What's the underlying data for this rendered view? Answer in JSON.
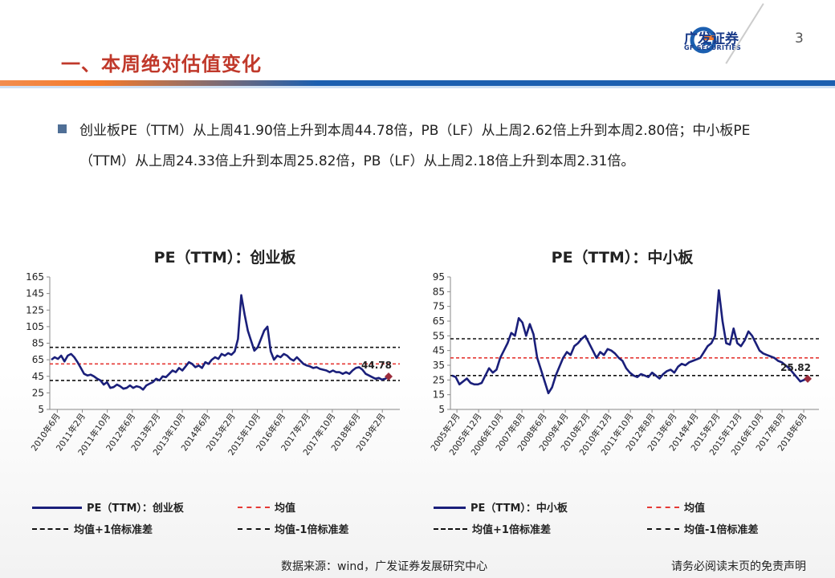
{
  "header": {
    "title": "一、本周绝对估值变化",
    "logo_cn": "广发证券",
    "logo_en": "GF SECURITIES",
    "page_number": "3",
    "colors": {
      "title": "#c0392b",
      "brand_blue": "#1b5fb0",
      "brand_orange": "#f47a2c"
    }
  },
  "bullet": {
    "text": "创业板PE（TTM）从上周41.90倍上升到本周44.78倍，PB（LF）从上周2.62倍上升到本周2.80倍；中小板PE（TTM）从上周24.33倍上升到本周25.82倍，PB（LF）从上周2.18倍上升到本周2.31倍。",
    "icon": "square-bullet-icon"
  },
  "footer": {
    "source": "数据来源：wind，广发证券发展研究中心",
    "disclaimer": "请务必阅读末页的免责声明"
  },
  "chart_data": [
    {
      "type": "line",
      "title": "PE（TTM）：创业板",
      "x_ticks": [
        "2010年6月",
        "2011年2月",
        "2011年10月",
        "2012年6月",
        "2013年2月",
        "2013年10月",
        "2014年6月",
        "2015年2月",
        "2015年10月",
        "2016年6月",
        "2017年2月",
        "2017年10月",
        "2018年6月",
        "2019年2月"
      ],
      "y_ticks": [
        5,
        25,
        45,
        65,
        85,
        105,
        125,
        145,
        165
      ],
      "ylim": [
        5,
        165
      ],
      "series": [
        {
          "name": "PE（TTM）：创业板",
          "color": "#1a1f7a",
          "values": [
            65,
            68,
            66,
            70,
            63,
            70,
            72,
            68,
            62,
            55,
            48,
            46,
            47,
            45,
            42,
            40,
            35,
            38,
            31,
            32,
            35,
            33,
            30,
            31,
            34,
            31,
            33,
            32,
            29,
            34,
            36,
            38,
            42,
            40,
            45,
            44,
            48,
            52,
            50,
            55,
            52,
            57,
            62,
            60,
            56,
            58,
            55,
            62,
            60,
            65,
            68,
            66,
            72,
            70,
            73,
            71,
            75,
            90,
            143,
            120,
            100,
            88,
            76,
            80,
            90,
            100,
            105,
            75,
            65,
            70,
            68,
            72,
            70,
            66,
            64,
            68,
            64,
            60,
            58,
            57,
            55,
            56,
            54,
            53,
            52,
            50,
            52,
            50,
            50,
            48,
            50,
            48,
            52,
            55,
            56,
            53,
            48,
            46,
            44,
            42,
            43,
            41,
            42,
            44.78
          ]
        },
        {
          "name": "均值",
          "color": "#e53935",
          "dash": true,
          "values_const": 60
        },
        {
          "name": "均值+1倍标准差",
          "color": "#111111",
          "dash": true,
          "values_const": 80
        },
        {
          "name": "均值-1倍标准差",
          "color": "#111111",
          "dash": true,
          "values_const": 40
        }
      ],
      "end_label": "44.78",
      "legend": [
        "PE（TTM）：创业板",
        "均值",
        "均值+1倍标准差",
        "均值-1倍标准差"
      ]
    },
    {
      "type": "line",
      "title": "PE（TTM）：中小板",
      "x_ticks": [
        "2005年2月",
        "2005年12月",
        "2006年10月",
        "2007年8月",
        "2008年6月",
        "2009年4月",
        "2010年2月",
        "2010年12月",
        "2011年10月",
        "2012年8月",
        "2013年6月",
        "2014年4月",
        "2015年2月",
        "2015年12月",
        "2016年10月",
        "2017年8月",
        "2018年6月"
      ],
      "y_ticks": [
        5,
        15,
        25,
        35,
        45,
        55,
        65,
        75,
        85,
        95
      ],
      "ylim": [
        5,
        95
      ],
      "series": [
        {
          "name": "PE（TTM）：中小板",
          "color": "#1a1f7a",
          "values": [
            28,
            27,
            22,
            24,
            26,
            23,
            22,
            22,
            23,
            28,
            33,
            30,
            32,
            40,
            45,
            50,
            57,
            55,
            67,
            64,
            55,
            63,
            56,
            40,
            32,
            24,
            16,
            20,
            28,
            34,
            40,
            44,
            42,
            48,
            50,
            53,
            55,
            50,
            45,
            40,
            44,
            42,
            46,
            45,
            43,
            40,
            38,
            33,
            30,
            28,
            27,
            29,
            28,
            27,
            30,
            28,
            26,
            29,
            31,
            32,
            30,
            34,
            36,
            35,
            37,
            38,
            39,
            40,
            44,
            48,
            50,
            55,
            86,
            65,
            50,
            49,
            60,
            50,
            48,
            52,
            58,
            55,
            50,
            45,
            43,
            42,
            41,
            40,
            38,
            37,
            35,
            33,
            30,
            27,
            24,
            25,
            25.82
          ]
        },
        {
          "name": "均值",
          "color": "#e53935",
          "dash": true,
          "values_const": 40
        },
        {
          "name": "均值+1倍标准差",
          "color": "#111111",
          "dash": true,
          "values_const": 53
        },
        {
          "name": "均值-1倍标准差",
          "color": "#111111",
          "dash": true,
          "values_const": 28
        }
      ],
      "end_label": "25.82",
      "legend": [
        "PE（TTM）：中小板",
        "均值",
        "均值+1倍标准差",
        "均值-1倍标准差"
      ]
    }
  ]
}
